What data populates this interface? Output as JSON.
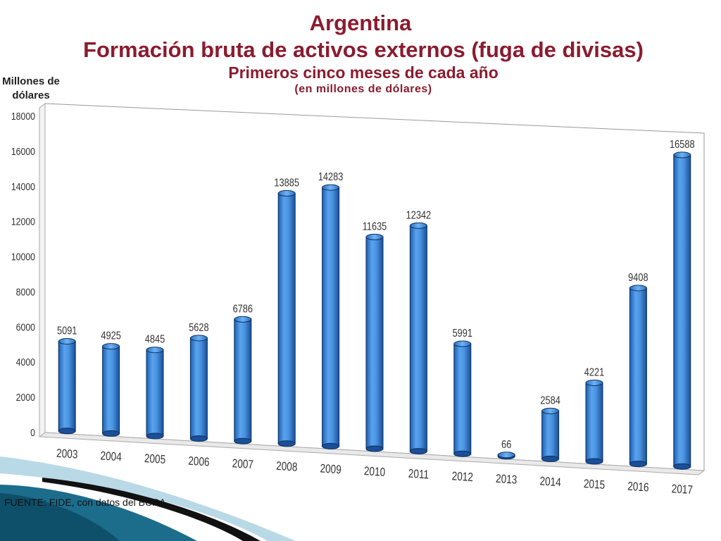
{
  "header": {
    "title": "Argentina",
    "subtitle": "Formación bruta de activos externos (fuga de divisas)",
    "subtitle2": "Primeros cinco meses de cada año",
    "unit_note": "(en millones de dólares)"
  },
  "colors": {
    "title": "#8b1b2f",
    "bar": "#3f88d8",
    "wave_dark": "#0e4f6a",
    "wave_light": "#b9d9e6"
  },
  "footer": {
    "source": "FUENTE: FIDE, con datos del BCRA"
  },
  "chart_data": {
    "type": "bar",
    "title": "",
    "xlabel": "",
    "ylabel": "Millones de dólares",
    "ylim": [
      0,
      18000
    ],
    "yticks": [
      0,
      2000,
      4000,
      6000,
      8000,
      10000,
      12000,
      14000,
      16000,
      18000
    ],
    "grid": false,
    "categories": [
      "2003",
      "2004",
      "2005",
      "2006",
      "2007",
      "2008",
      "2009",
      "2010",
      "2011",
      "2012",
      "2013",
      "2014",
      "2015",
      "2016",
      "2017"
    ],
    "values": [
      5091,
      4925,
      4845,
      5628,
      6786,
      13885,
      14283,
      11635,
      12342,
      5991,
      66,
      2584,
      4221,
      9408,
      16588
    ]
  }
}
